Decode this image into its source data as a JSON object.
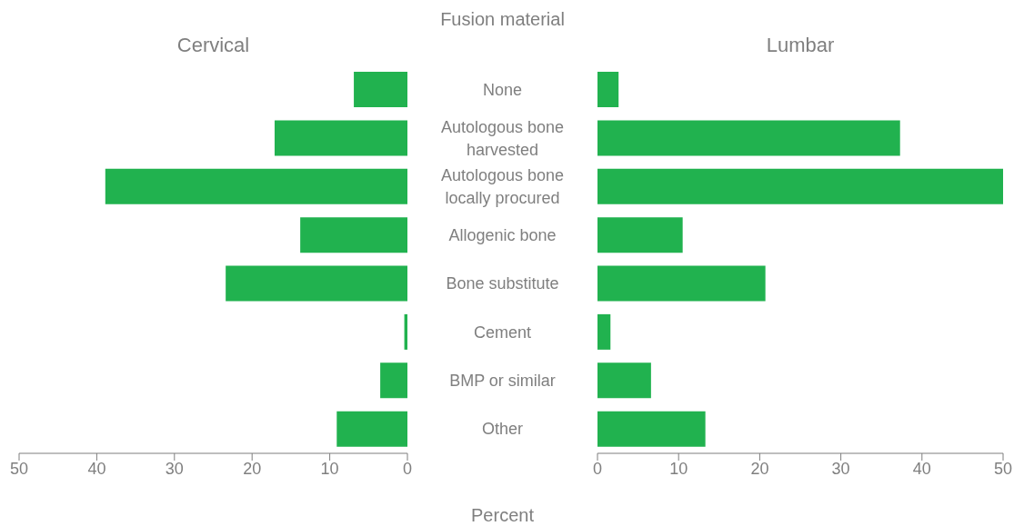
{
  "chart_data": [
    {
      "type": "bar",
      "orientation": "horizontal",
      "title": "Cervical",
      "ylabel": "Fusion material",
      "xlabel": "Percent",
      "categories": [
        "None",
        "Autologous bone harvested",
        "Autologous bone locally procured",
        "Allogenic bone",
        "Bone substitute",
        "Cement",
        "BMP or similar",
        "Other"
      ],
      "values": [
        6.9,
        17.1,
        38.9,
        13.8,
        23.4,
        0.4,
        3.5,
        9.1
      ],
      "color": "#21b24f",
      "xlim": [
        50,
        0
      ],
      "xticks": [
        50,
        40,
        30,
        20,
        10,
        0
      ],
      "grid": false,
      "legend": false
    },
    {
      "type": "bar",
      "orientation": "horizontal",
      "title": "Lumbar",
      "categories": [
        null,
        null,
        null,
        null,
        null,
        null,
        null,
        null
      ],
      "values": [
        2.6,
        37.3,
        50,
        10.5,
        20.7,
        1.6,
        6.6,
        13.3
      ],
      "color": "#21b24f",
      "xlim": [
        0,
        50
      ],
      "xticks": [
        0,
        10,
        20,
        30,
        40,
        50
      ],
      "tick_labels": "x",
      "grid": false,
      "legend": false
    }
  ]
}
